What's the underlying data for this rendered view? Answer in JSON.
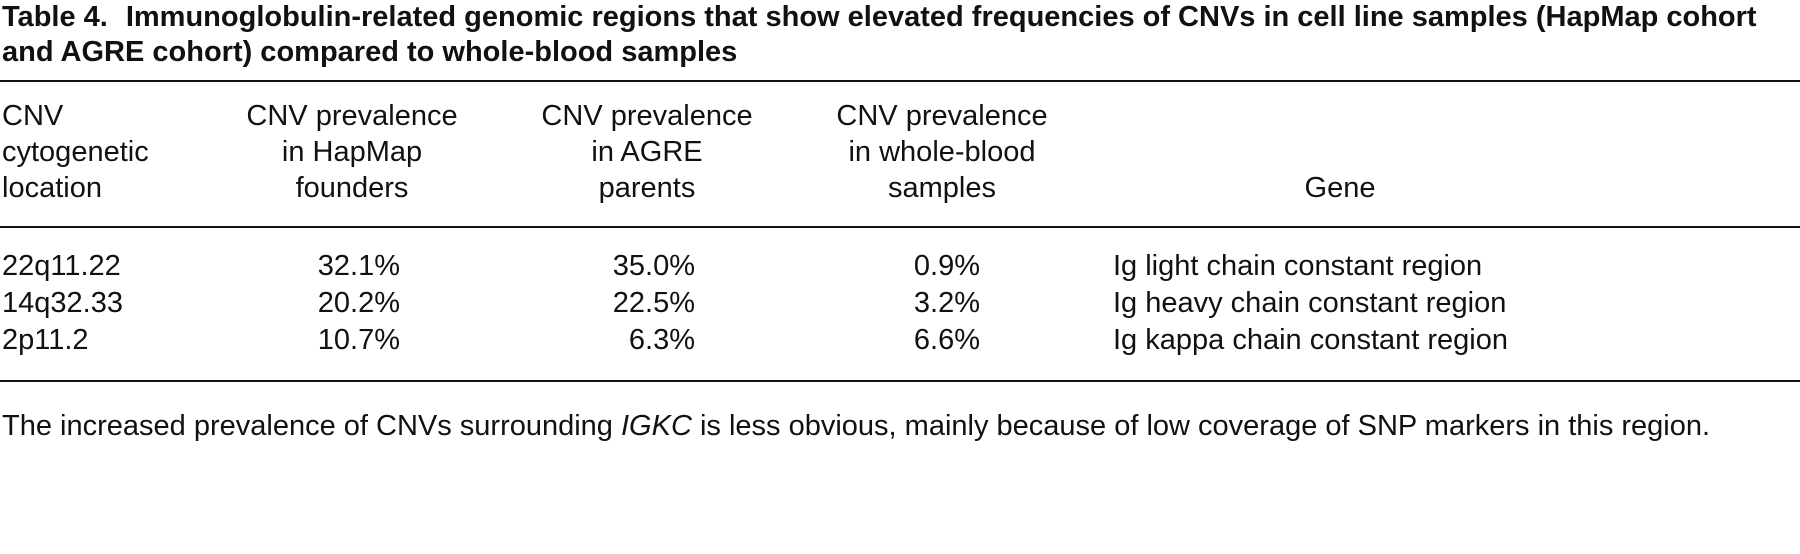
{
  "caption": {
    "label": "Table 4.",
    "title": "Immunoglobulin-related genomic regions that show elevated frequencies of CNVs in cell line samples (HapMap cohort and AGRE cohort) compared to whole-blood samples"
  },
  "headers": {
    "location": [
      "CNV",
      "cytogenetic",
      "location"
    ],
    "hapmap": [
      "CNV prevalence",
      "in HapMap",
      "founders"
    ],
    "agre": [
      "CNV prevalence",
      "in AGRE",
      "parents"
    ],
    "blood": [
      "CNV prevalence",
      "in whole-blood",
      "samples"
    ],
    "gene": "Gene"
  },
  "rows": [
    {
      "location": "22q11.22",
      "hapmap": "32.1%",
      "agre": "35.0%",
      "blood": "0.9%",
      "gene": "Ig light chain constant region"
    },
    {
      "location": "14q32.33",
      "hapmap": "20.2%",
      "agre": "22.5%",
      "blood": "3.2%",
      "gene": "Ig heavy chain constant region"
    },
    {
      "location": "2p11.2",
      "hapmap": "10.7%",
      "agre": "6.3%",
      "blood": "6.6%",
      "gene": "Ig kappa chain constant region"
    }
  ],
  "footnote": {
    "before": "The increased prevalence of CNVs surrounding ",
    "italic": "IGKC",
    "after": " is less obvious, mainly because of low coverage of SNP markers in this region."
  }
}
